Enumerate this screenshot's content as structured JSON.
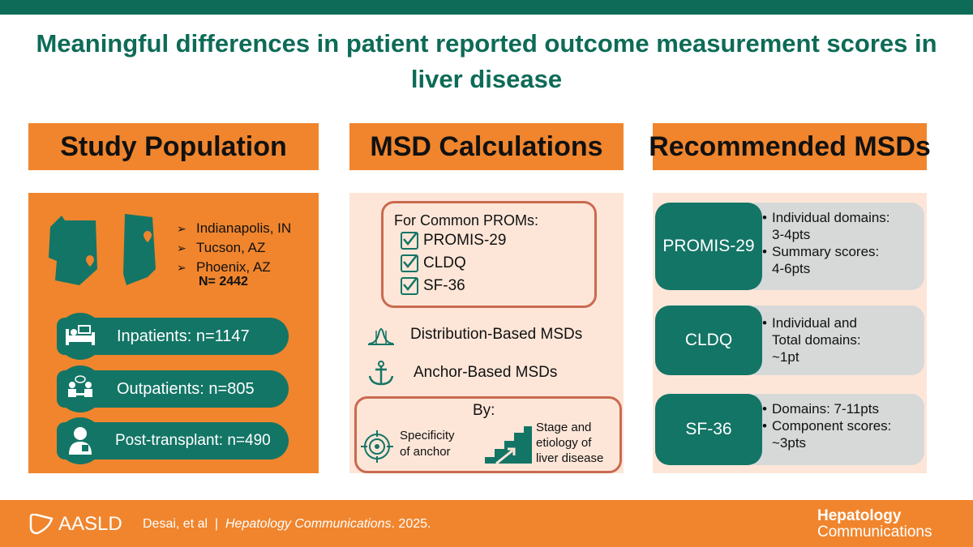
{
  "title": "Meaningful differences in patient reported outcome measurement scores in liver disease",
  "columns": {
    "study_population": "Study Population",
    "msd_calculations": "MSD Calculations",
    "recommended_msds": "Recommended MSDs"
  },
  "population": {
    "cities": [
      "Indianapolis, IN",
      "Tucson, AZ",
      "Phoenix, AZ"
    ],
    "n_total": "N= 2442",
    "groups": [
      {
        "label": "Inpatients: n=1147",
        "icon": "hospital-bed-icon"
      },
      {
        "label": "Outpatients: n=805",
        "icon": "consultation-icon"
      },
      {
        "label": "Post-transplant: n=490",
        "icon": "patient-icon"
      }
    ]
  },
  "msd": {
    "common_title": "For Common PROMs:",
    "proms": [
      "PROMIS-29",
      "CLDQ",
      "SF-36"
    ],
    "distribution": "Distribution-Based MSDs",
    "anchor": "Anchor-Based MSDs",
    "by_label": "By:",
    "specificity": [
      "Specificity",
      "of anchor"
    ],
    "stage": [
      "Stage and",
      "etiology of",
      "liver disease"
    ]
  },
  "recommended": [
    {
      "name": "PROMIS-29",
      "bullets": [
        [
          "Individual domains:",
          "3-4pts"
        ],
        [
          "Summary scores:",
          "4-6pts"
        ]
      ]
    },
    {
      "name": "CLDQ",
      "bullets": [
        [
          "Individual and",
          "Total domains:",
          "~1pt"
        ]
      ]
    },
    {
      "name": "SF-36",
      "bullets": [
        [
          "Domains: 7-11pts"
        ],
        [
          "Component scores:",
          "~3pts"
        ]
      ]
    }
  ],
  "footer": {
    "logo": "AASLD",
    "citation_prefix": "Desai, et al  |  ",
    "citation_journal": "Hepatology Communications",
    "citation_suffix": ". 2025.",
    "journal_line1": "Hepatology",
    "journal_line2": "Communications"
  },
  "colors": {
    "teal": "#0d6b57",
    "orange": "#f0852d",
    "peach": "#fde6d8",
    "grey": "#d6d9d8"
  }
}
